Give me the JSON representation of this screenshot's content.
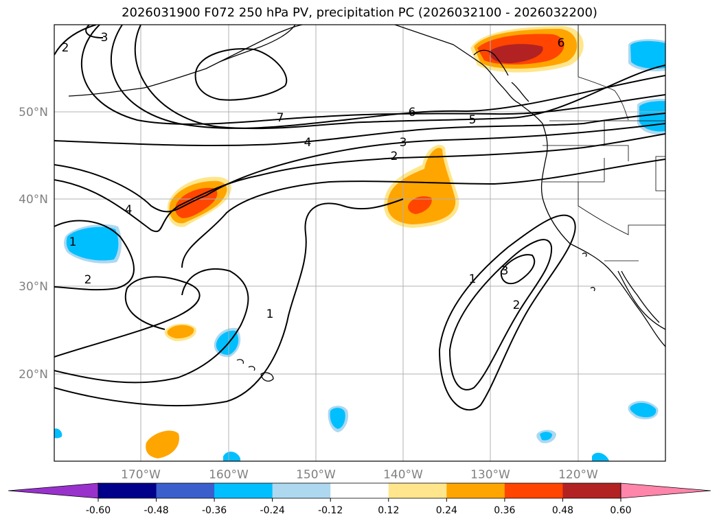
{
  "chart_data": {
    "type": "map-contour",
    "title": "2026031900 F072 250 hPa PV, precipitation PC (2026032100 - 2026032200)",
    "lat_labels": [
      "50°N",
      "40°N",
      "30°N",
      "20°N"
    ],
    "lon_labels": [
      "170°W",
      "160°W",
      "150°W",
      "140°W",
      "130°W",
      "120°W"
    ],
    "contour_labels": [
      "7",
      "6",
      "5",
      "4",
      "3",
      "2",
      "4",
      "2",
      "1",
      "1",
      "1",
      "3",
      "2",
      "3",
      "2",
      "6"
    ],
    "colorbar": {
      "ticks": [
        "-0.60",
        "-0.48",
        "-0.36",
        "-0.24",
        "-0.12",
        "0.12",
        "0.24",
        "0.36",
        "0.48",
        "0.60"
      ],
      "colors": [
        "#9932cc",
        "#00008b",
        "#3a5fcd",
        "#00bfff",
        "#add8f0",
        "#ffffff",
        "#ffe68c",
        "#ffa500",
        "#ff4500",
        "#b22222",
        "#ff85aa"
      ],
      "extend": "both"
    }
  }
}
